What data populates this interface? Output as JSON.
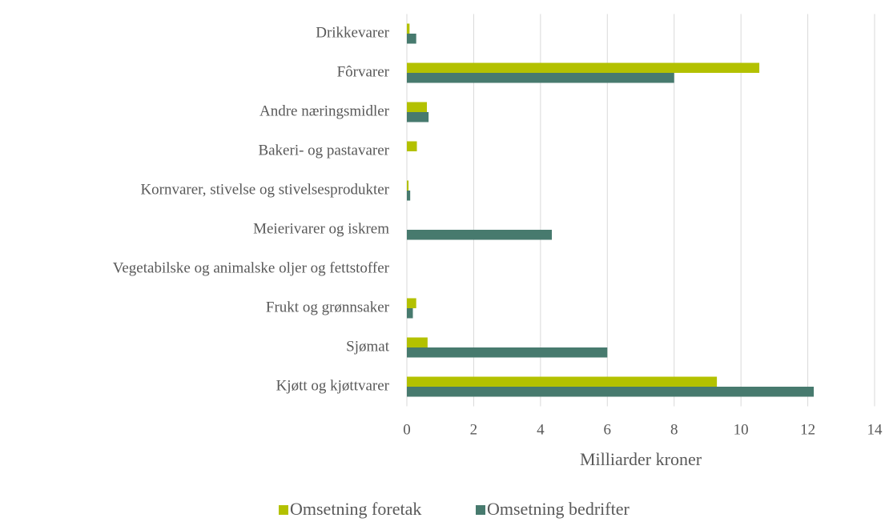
{
  "chart_data": {
    "type": "hbar",
    "xlabel": "Milliarder kroner",
    "categories": [
      "Drikkevarer",
      "Fôrvarer",
      "Andre næringsmidler",
      "Bakeri- og pastavarer",
      "Kornvarer, stivelse og stivelsesprodukter",
      "Meierivarer og iskrem",
      "Vegetabilske og animalske oljer og fettstoffer",
      "Frukt og grønnsaker",
      "Sjømat",
      "Kjøtt og kjøttvarer"
    ],
    "series": [
      {
        "name": "Omsetning foretak",
        "color": "#b3c100",
        "values": [
          0.08,
          10.55,
          0.6,
          0.3,
          0.05,
          0,
          0,
          0.28,
          0.62,
          9.28
        ]
      },
      {
        "name": "Omsetning bedrifter",
        "color": "#477a6e",
        "values": [
          0.28,
          8.0,
          0.65,
          0,
          0.1,
          4.34,
          0,
          0.18,
          6.0,
          12.18
        ]
      }
    ],
    "xlim": [
      0,
      14
    ],
    "xticks": [
      0,
      2,
      4,
      6,
      8,
      10,
      12,
      14
    ],
    "grid": true,
    "legend": "bottom"
  }
}
